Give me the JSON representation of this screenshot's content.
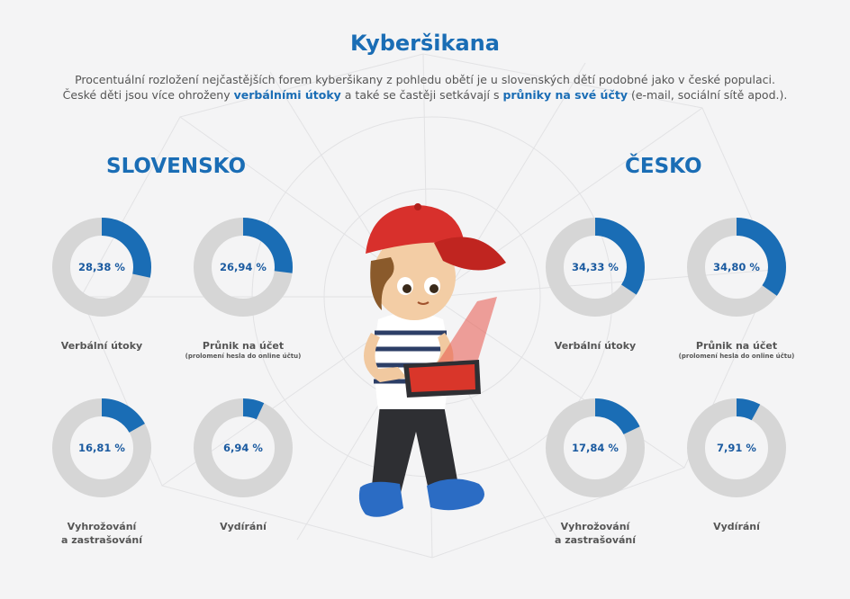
{
  "title": "Kyberšikana",
  "intro": {
    "p1": "Procentuální rozložení nejčastějších forem kyberšikany z pohledu obětí je u slovenských dětí podobné jako v české populaci.",
    "p2_a": "České děti jsou více ohroženy ",
    "p2_b": "verbálními útoky",
    "p2_c": " a také se častěji setkávají s ",
    "p2_d": "průniky na své účty",
    "p2_e": " (e-mail, sociální sítě apod.)."
  },
  "colors": {
    "accent": "#1a6db5",
    "ring": "#d6d6d6",
    "fill": "#1a6db5"
  },
  "chart_data": [
    {
      "type": "pie",
      "title": "SLOVENSKO",
      "categories": [
        "Verbální útoky",
        "Průnik na účet",
        "Vyhrožování a zastrašování",
        "Vydírání"
      ],
      "values": [
        28.38,
        26.94,
        16.81,
        6.94
      ],
      "labels": [
        "28,38 %",
        "26,94 %",
        "16,81 %",
        "6,94 %"
      ],
      "sublabels": [
        "",
        "(prolomení hesla do online účtu)",
        "",
        ""
      ]
    },
    {
      "type": "pie",
      "title": "ČESKO",
      "categories": [
        "Verbální útoky",
        "Průnik na účet",
        "Vyhrožování a zastrašování",
        "Vydírání"
      ],
      "values": [
        34.33,
        34.8,
        17.84,
        7.91
      ],
      "labels": [
        "34,33 %",
        "34,80 %",
        "17,84 %",
        "7,91 %"
      ],
      "sublabels": [
        "",
        "(prolomení hesla do online účtu)",
        "",
        ""
      ]
    }
  ],
  "label_lines": {
    "verbal": "Verbální útoky",
    "account": "Průnik na účet",
    "threat_1": "Vyhrožování",
    "threat_2": "a zastrašování",
    "extortion": "Vydírání"
  }
}
